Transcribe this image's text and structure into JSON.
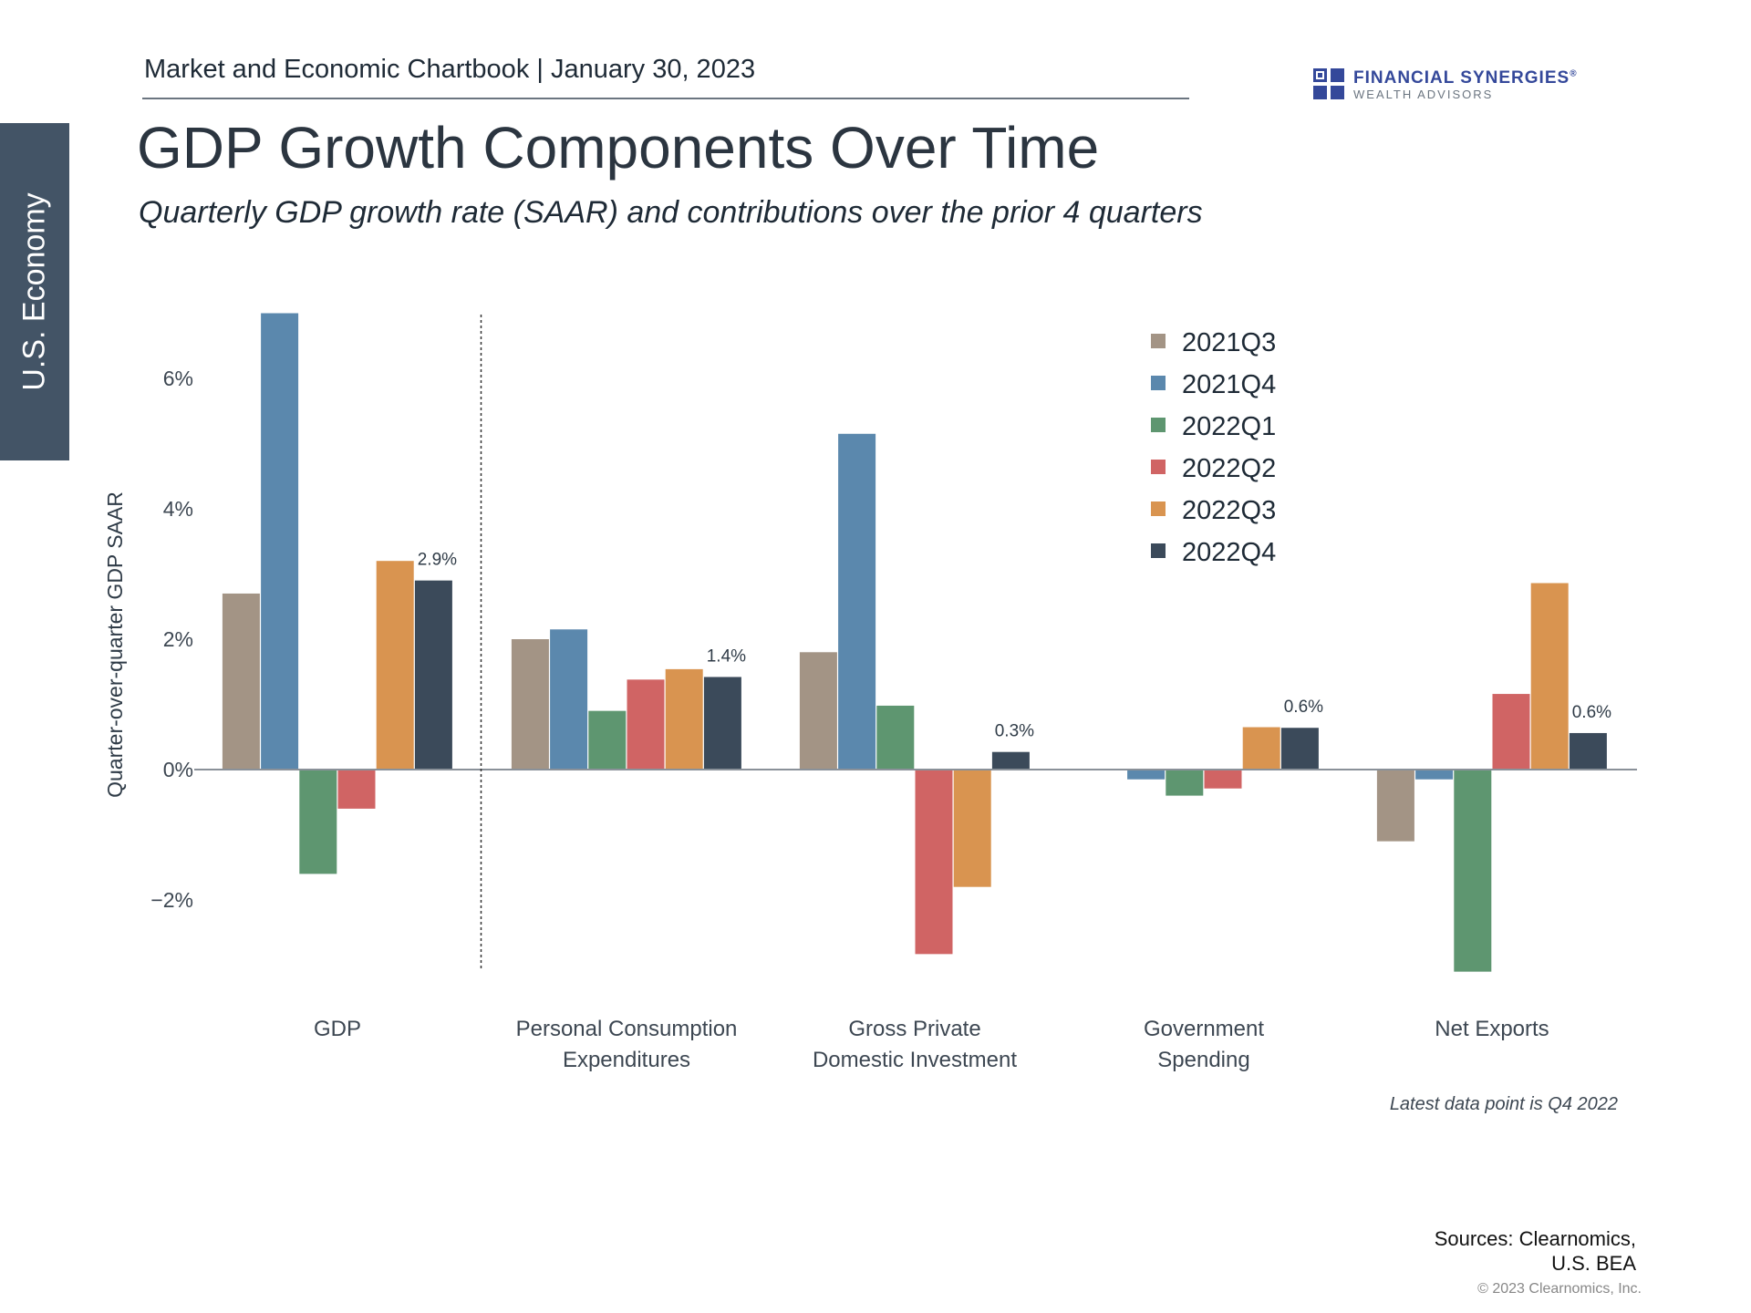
{
  "header": {
    "chartbook": "Market and Economic Chartbook | January 30, 2023",
    "side_tab": "U.S. Economy"
  },
  "logo": {
    "name": "FINANCIAL SYNERGIES",
    "trademark": "®",
    "sub": "WEALTH ADVISORS",
    "color": "#34489a"
  },
  "title": "GDP Growth Components Over Time",
  "subtitle": "Quarterly GDP growth rate (SAAR) and contributions over the prior 4 quarters",
  "chart_data": {
    "type": "bar",
    "ylabel": "Quarter-over-quarter GDP SAAR",
    "ylim": [
      -3.4,
      7.2
    ],
    "yticks": [
      -2,
      0,
      2,
      4,
      6
    ],
    "ytick_labels": [
      "−2%",
      "0%",
      "2%",
      "4%",
      "6%"
    ],
    "legend_position": "top-right",
    "categories": [
      [
        "GDP"
      ],
      [
        "Personal Consumption",
        "Expenditures"
      ],
      [
        "Gross Private",
        "Domestic Investment"
      ],
      [
        "Government",
        "Spending"
      ],
      [
        "Net Exports"
      ]
    ],
    "series": [
      {
        "name": "2021Q3",
        "color": "#a39485",
        "values": [
          2.7,
          2.0,
          1.8,
          0.0,
          -1.1
        ]
      },
      {
        "name": "2021Q4",
        "color": "#5b88ad",
        "values": [
          7.0,
          2.15,
          5.15,
          -0.15,
          -0.15
        ]
      },
      {
        "name": "2022Q1",
        "color": "#5e9670",
        "values": [
          -1.6,
          0.9,
          0.98,
          -0.4,
          -3.1
        ]
      },
      {
        "name": "2022Q2",
        "color": "#d06464",
        "values": [
          -0.6,
          1.38,
          -2.83,
          -0.29,
          1.16
        ]
      },
      {
        "name": "2022Q3",
        "color": "#d99450",
        "values": [
          3.2,
          1.54,
          -1.8,
          0.65,
          2.86
        ]
      },
      {
        "name": "2022Q4",
        "color": "#3b4a5a",
        "values": [
          2.9,
          1.42,
          0.27,
          0.64,
          0.56
        ]
      }
    ],
    "data_labels": [
      "2.9%",
      "1.4%",
      "0.3%",
      "0.6%",
      "0.6%"
    ],
    "divider_after_category": 0
  },
  "footer": {
    "note": "Latest data point is Q4 2022",
    "sources_line1": "Sources: Clearnomics,",
    "sources_line2": "U.S. BEA",
    "copyright": "© 2023 Clearnomics, Inc."
  }
}
